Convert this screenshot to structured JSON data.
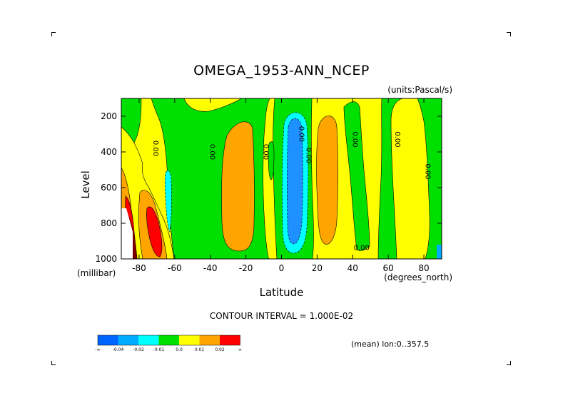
{
  "page": {
    "units_note": "(units:Pascal/s)",
    "contour_interval": "CONTOUR INTERVAL = 1.000E-02",
    "mean_lon": "(mean) lon:0..357.5"
  },
  "chart_data": {
    "type": "heatmap",
    "title": "OMEGA_1953-ANN_NCEP",
    "xlabel": "Latitude",
    "xunit": "(degrees_north)",
    "ylabel": "Level",
    "yunit": "(millibar)",
    "xlim": [
      -90,
      90
    ],
    "ylim": [
      1000,
      100
    ],
    "xticks": [
      -80,
      -60,
      -40,
      -20,
      0,
      20,
      40,
      60,
      80
    ],
    "yticks": [
      200,
      400,
      600,
      800,
      1000
    ],
    "contour_labels": [
      {
        "text": "0.00",
        "x": -72,
        "y": 380
      },
      {
        "text": "0.00",
        "x": -40,
        "y": 400
      },
      {
        "text": "0.00",
        "x": -10,
        "y": 400
      },
      {
        "text": "0.00",
        "x": 10,
        "y": 300
      },
      {
        "text": "0.00",
        "x": 14,
        "y": 420
      },
      {
        "text": "0.00",
        "x": 40,
        "y": 330
      },
      {
        "text": "0.00",
        "x": 64,
        "y": 330
      },
      {
        "text": "0.00",
        "x": 81,
        "y": 510
      },
      {
        "text": "0.00",
        "x": 45,
        "y": 950
      }
    ],
    "regions": [
      {
        "level": "positive_1",
        "color": "#ffa500",
        "desc": "20-40S broad maximum"
      },
      {
        "level": "positive_1",
        "color": "#ffa500",
        "desc": "20-30N maximum"
      },
      {
        "level": "negative_3",
        "color": "#1e90ff",
        "desc": "ITCZ ascent near 5N"
      }
    ],
    "legend": {
      "labels": [
        "-∞",
        "-0.04",
        "-0.02",
        "-0.01",
        "0.0",
        "0.01",
        "0.02",
        "∞"
      ],
      "colors": [
        "#0064ff",
        "#00aaff",
        "#00ffff",
        "#00e000",
        "#ffff00",
        "#ffa500",
        "#ff0000"
      ]
    }
  }
}
